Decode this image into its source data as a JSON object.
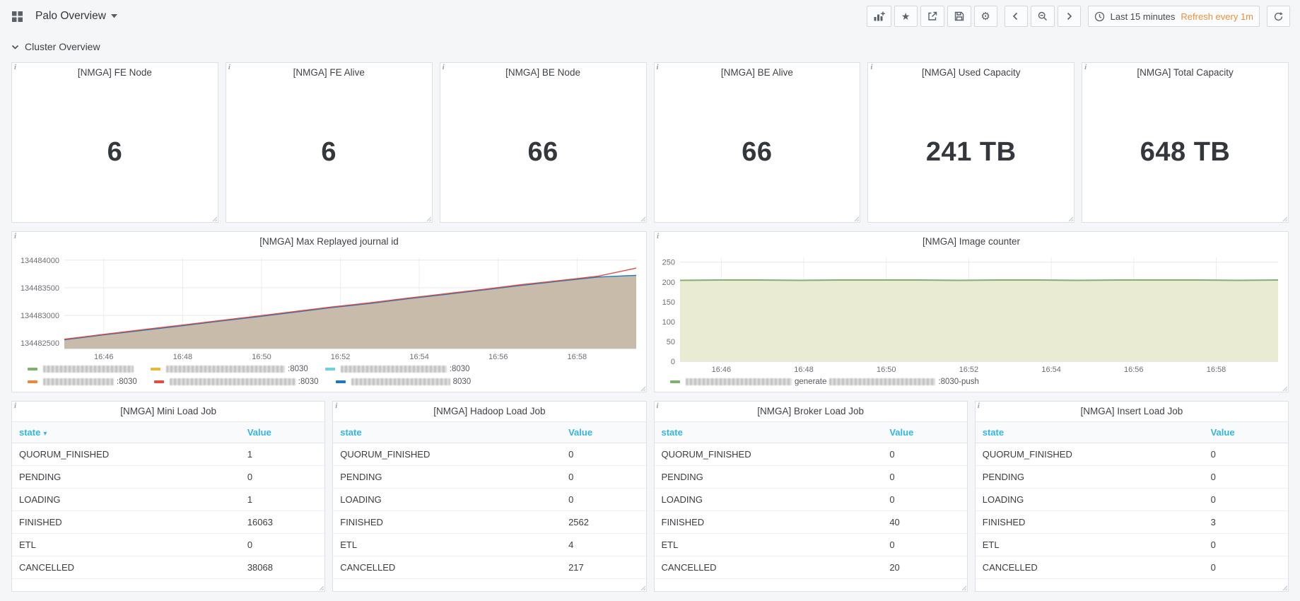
{
  "navbar": {
    "title": "Palo Overview",
    "time_range": "Last 15 minutes",
    "refresh_interval": "Refresh every 1m"
  },
  "row_header": {
    "title": "Cluster Overview"
  },
  "singlestats": [
    {
      "title": "[NMGA] FE Node",
      "value": "6"
    },
    {
      "title": "[NMGA] FE Alive",
      "value": "6"
    },
    {
      "title": "[NMGA] BE Node",
      "value": "66"
    },
    {
      "title": "[NMGA] BE Alive",
      "value": "66"
    },
    {
      "title": "[NMGA] Used Capacity",
      "value": "241 TB"
    },
    {
      "title": "[NMGA] Total Capacity",
      "value": "648 TB"
    }
  ],
  "chart_data": [
    {
      "type": "area",
      "title": "[NMGA] Max Replayed journal id",
      "x_tick_labels": [
        "16:46",
        "16:48",
        "16:50",
        "16:52",
        "16:54",
        "16:56",
        "16:58"
      ],
      "x_tick_pos": [
        1,
        3,
        5,
        7,
        9,
        11,
        13
      ],
      "x_max": 14.5,
      "ylim": [
        134482400,
        134484050
      ],
      "y_tick_values": [
        134482500,
        134483000,
        134483500,
        134484000
      ],
      "y_tick_labels": [
        "134482500",
        "134483000",
        "134483500",
        "134484000"
      ],
      "y_axis_width": 74,
      "line_width": 1.4,
      "legend_position": "bottom",
      "grid": true,
      "series": [
        {
          "name": "max-replayed-journal-id-a",
          "color": "#1f78c1",
          "fill": "#c8bbaa",
          "values": [
            134482560,
            134482645,
            134482725,
            134482805,
            134482890,
            134482970,
            134483055,
            134483140,
            134483215,
            134483300,
            134483380,
            134483460,
            134483545,
            134483620,
            134483695,
            134483725
          ]
        },
        {
          "name": "max-replayed-journal-id-b",
          "color": "#e24d42",
          "values": [
            134482570,
            134482655,
            134482738,
            134482818,
            134482902,
            134482983,
            134483068,
            134483152,
            134483228,
            134483312,
            134483392,
            134483472,
            134483558,
            134483632,
            134483710,
            134483855
          ]
        }
      ],
      "legend_rows": [
        [
          {
            "color": "#7eb26d",
            "segments": [
              {
                "r": 128
              }
            ]
          },
          {
            "color": "#eab839",
            "segments": [
              {
                "r": 168
              },
              {
                "t": ":8030"
              }
            ]
          },
          {
            "color": "#6ed0e0",
            "segments": [
              {
                "r": 150
              },
              {
                "t": ":8030"
              }
            ]
          }
        ],
        [
          {
            "color": "#ef843c",
            "segments": [
              {
                "r": 100
              },
              {
                "t": ":8030"
              }
            ]
          },
          {
            "color": "#e24d42",
            "segments": [
              {
                "r": 178
              },
              {
                "t": ":8030"
              }
            ]
          },
          {
            "color": "#1f78c1",
            "segments": [
              {
                "r": 140
              },
              {
                "t": "8030"
              }
            ]
          }
        ]
      ]
    },
    {
      "type": "area",
      "title": "[NMGA] Image counter",
      "x_tick_labels": [
        "16:46",
        "16:48",
        "16:50",
        "16:52",
        "16:54",
        "16:56",
        "16:58"
      ],
      "x_tick_pos": [
        1,
        3,
        5,
        7,
        9,
        11,
        13
      ],
      "x_max": 14.5,
      "ylim": [
        0,
        262
      ],
      "y_tick_values": [
        0,
        50,
        100,
        150,
        200,
        250
      ],
      "y_tick_labels": [
        "0",
        "50",
        "100",
        "150",
        "200",
        "250"
      ],
      "y_axis_width": 36,
      "line_width": 2,
      "legend_position": "bottom",
      "grid": true,
      "series": [
        {
          "name": "image-counter-generate",
          "color": "#7eb26d",
          "fill": "#e9ecd3",
          "values": [
            204,
            205,
            205,
            204,
            205,
            205,
            205,
            204,
            205,
            205,
            204,
            205,
            205,
            205,
            204,
            205
          ]
        }
      ],
      "legend_rows": [
        [
          {
            "color": "#7eb26d",
            "segments": [
              {
                "r": 150
              },
              {
                "t": "generate"
              },
              {
                "r": 150
              },
              {
                "t": ":8030-push"
              }
            ]
          }
        ]
      ]
    }
  ],
  "tables": [
    {
      "title": "[NMGA] Mini Load Job",
      "columns": [
        "state",
        "Value"
      ],
      "sorted_column": 0,
      "rows": [
        [
          "QUORUM_FINISHED",
          "1"
        ],
        [
          "PENDING",
          "0"
        ],
        [
          "LOADING",
          "1"
        ],
        [
          "FINISHED",
          "16063"
        ],
        [
          "ETL",
          "0"
        ],
        [
          "CANCELLED",
          "38068"
        ]
      ]
    },
    {
      "title": "[NMGA] Hadoop Load Job",
      "columns": [
        "state",
        "Value"
      ],
      "rows": [
        [
          "QUORUM_FINISHED",
          "0"
        ],
        [
          "PENDING",
          "0"
        ],
        [
          "LOADING",
          "0"
        ],
        [
          "FINISHED",
          "2562"
        ],
        [
          "ETL",
          "4"
        ],
        [
          "CANCELLED",
          "217"
        ]
      ]
    },
    {
      "title": "[NMGA] Broker Load Job",
      "columns": [
        "state",
        "Value"
      ],
      "rows": [
        [
          "QUORUM_FINISHED",
          "0"
        ],
        [
          "PENDING",
          "0"
        ],
        [
          "LOADING",
          "0"
        ],
        [
          "FINISHED",
          "40"
        ],
        [
          "ETL",
          "0"
        ],
        [
          "CANCELLED",
          "20"
        ]
      ]
    },
    {
      "title": "[NMGA] Insert Load Job",
      "columns": [
        "state",
        "Value"
      ],
      "rows": [
        [
          "QUORUM_FINISHED",
          "0"
        ],
        [
          "PENDING",
          "0"
        ],
        [
          "LOADING",
          "0"
        ],
        [
          "FINISHED",
          "3"
        ],
        [
          "ETL",
          "0"
        ],
        [
          "CANCELLED",
          "0"
        ]
      ]
    }
  ],
  "colors": {
    "accent_orange": "#ef8e3b",
    "table_header_blue": "#33b5e5",
    "page_bg": "#f5f6f8",
    "panel_border": "#dde1e7"
  }
}
